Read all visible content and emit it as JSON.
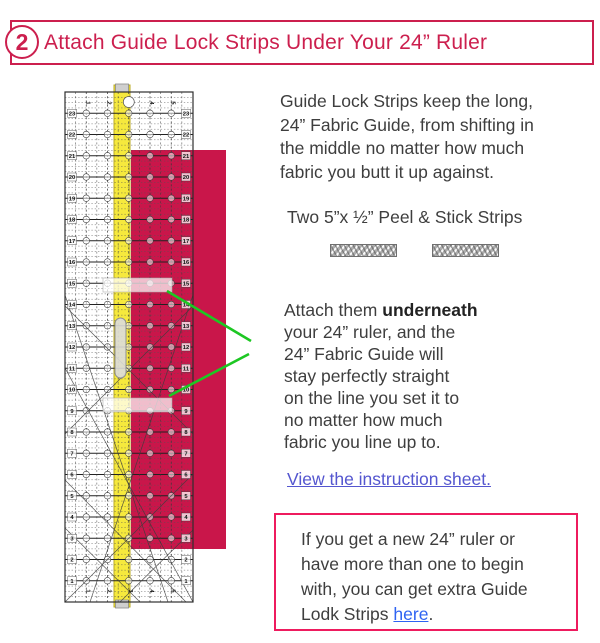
{
  "header": {
    "step_number": "2",
    "title": "Attach Guide Lock Strips Under Your 24” Ruler"
  },
  "intro": {
    "lines": [
      "Guide Lock Strips keep the long,",
      "24” Fabric Guide, from shifting in",
      "the middle no matter how much",
      "fabric you butt it up against."
    ]
  },
  "strips_section": {
    "caption": "Two 5”x ½” Peel & Stick Strips",
    "strip_count": "2"
  },
  "attach_note": {
    "line1_prefix": "Attach them ",
    "line1_bold": "underneath",
    "lines": [
      "your 24” ruler, and the",
      "24” Fabric Guide will",
      "stay perfectly straight",
      "on the line you set it to",
      "no matter how much",
      "fabric you line up to."
    ]
  },
  "instruction_link": {
    "label": "View the instruction sheet."
  },
  "info_box": {
    "lines": [
      "If you get a new 24” ruler or",
      "have more than one to begin",
      "with, you can get extra Guide"
    ],
    "last_line_prefix": "Lodk Strips ",
    "link_label": "here",
    "last_line_suffix": "."
  },
  "ruler": {
    "edge_numbers": [
      23,
      22,
      21,
      20,
      19,
      18,
      17,
      16,
      15,
      14,
      13,
      12,
      11,
      10,
      9,
      8,
      7,
      6,
      5,
      4,
      3,
      2,
      1
    ],
    "column_labels": [
      "1",
      "2",
      "3",
      "4",
      "5"
    ]
  },
  "colors": {
    "accent_crimson": "#cc1f4e",
    "fabric_red": "#c9164a",
    "guide_yellow": "#f6e93d",
    "guide_yellow_edge": "#b9a922",
    "pointer_green": "#1dc723",
    "link_purple": "#5456cf",
    "link_blue": "#2e63f2",
    "box_border_pink": "#ee1b5e",
    "body_text": "#3e3e3e"
  }
}
